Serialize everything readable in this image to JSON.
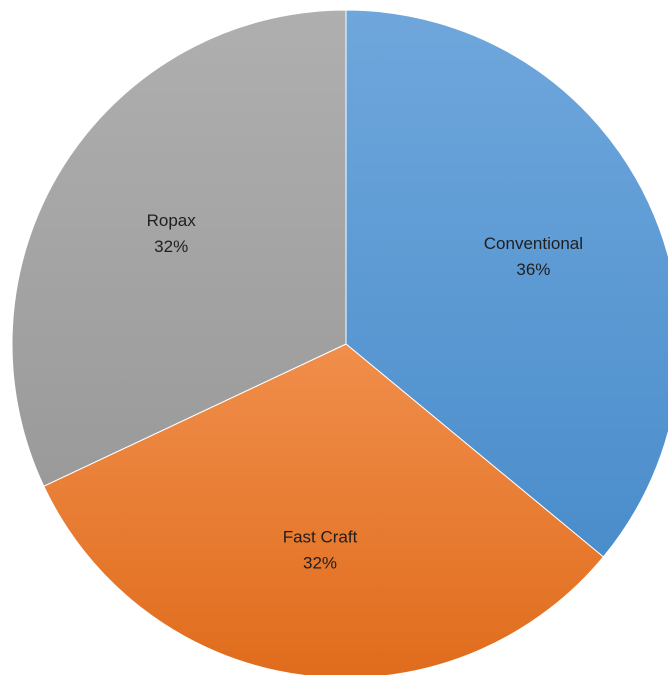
{
  "chart_data": {
    "type": "pie",
    "title": "",
    "start_angle_deg": 0,
    "direction": "clockwise",
    "slices": [
      {
        "label": "Conventional",
        "value": 36,
        "value_label": "36%",
        "color": "#5B9BD5",
        "color_light": "#6FA7DC",
        "color_dark": "#4A8DCB"
      },
      {
        "label": "Fast Craft",
        "value": 32,
        "value_label": "32%",
        "color": "#ED7D31",
        "color_light": "#F08E4B",
        "color_dark": "#E06C1C"
      },
      {
        "label": "Ropax",
        "value": 32,
        "value_label": "32%",
        "color": "#A5A5A5",
        "color_light": "#AFAFAF",
        "color_dark": "#9A9A9A"
      }
    ],
    "legend": "none"
  }
}
